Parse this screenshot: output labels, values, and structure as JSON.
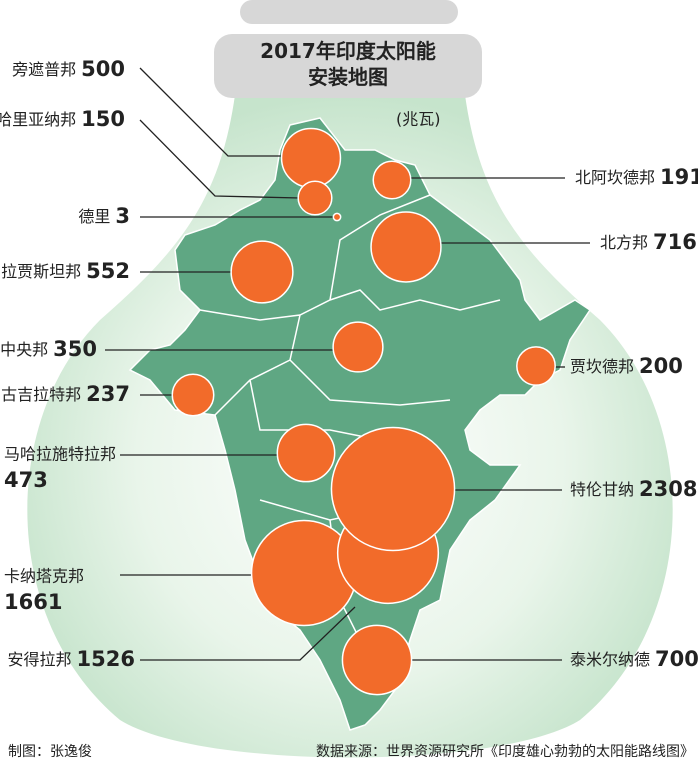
{
  "chart_data": {
    "type": "bubble",
    "title": "2017年印度太阳能安装地图",
    "unit": "(兆瓦)",
    "categories": [
      "旁遮普邦",
      "哈里亚纳邦",
      "德里",
      "拉贾斯坦邦",
      "中央邦",
      "古吉拉特邦",
      "马哈拉施特拉邦",
      "卡纳塔克邦",
      "安得拉邦",
      "北阿坎德邦",
      "北方邦",
      "贾坎德邦",
      "特伦甘纳",
      "泰米尔纳德"
    ],
    "values": [
      500,
      150,
      3,
      552,
      350,
      237,
      473,
      1661,
      1526,
      191,
      716,
      200,
      2308,
      700
    ],
    "color": "#f26b2a",
    "credit": "制图：张逸俊",
    "source": "数据来源：世界资源研究所《印度雄心勃勃的太阳能路线图》"
  }
}
